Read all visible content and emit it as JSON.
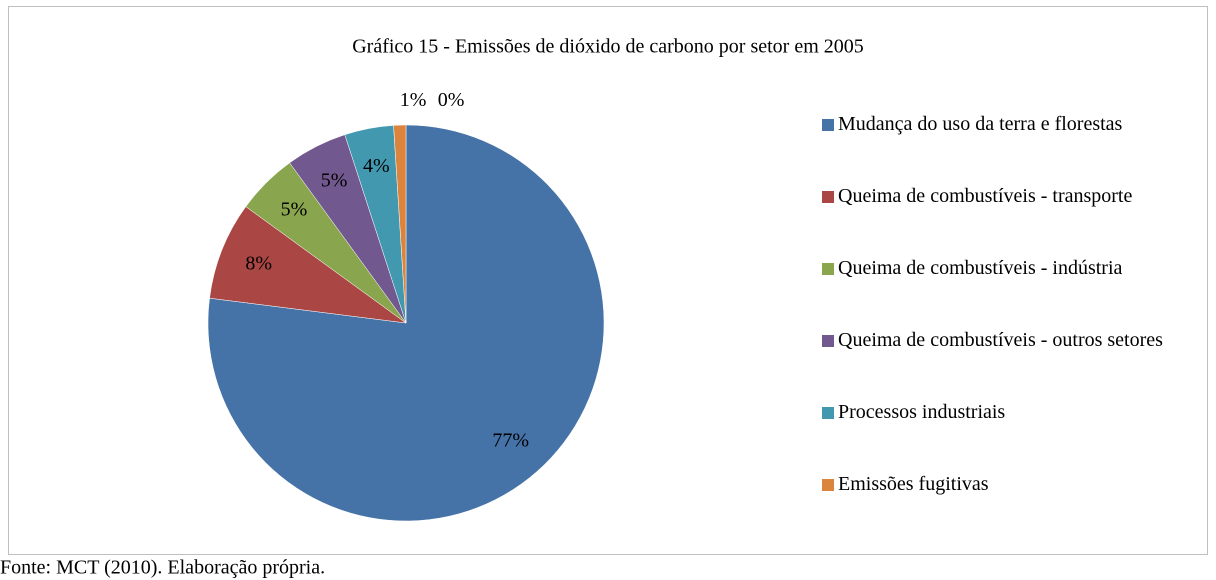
{
  "chart_data": {
    "type": "pie",
    "title": "Gráfico 15 - Emissões de dióxido de carbono por setor em 2005",
    "categories": [
      "Mudança do uso da terra e florestas",
      "Queima de combustíveis - transporte",
      "Queima de combustíveis - indústria",
      "Queima de combustíveis - outros setores",
      "Processos industriais",
      "Emissões fugitivas",
      null
    ],
    "values": [
      77,
      8,
      5,
      5,
      4,
      1,
      0
    ],
    "value_labels": [
      "77%",
      "8%",
      "5%",
      "5%",
      "4%",
      "1%",
      "0%"
    ],
    "colors": [
      "#4572a7",
      "#aa4643",
      "#89a54e",
      "#71588f",
      "#4198af",
      "#db843d",
      "#93a9cf"
    ],
    "legend": "right",
    "source": "Fonte: MCT (2010). Elaboração própria."
  }
}
